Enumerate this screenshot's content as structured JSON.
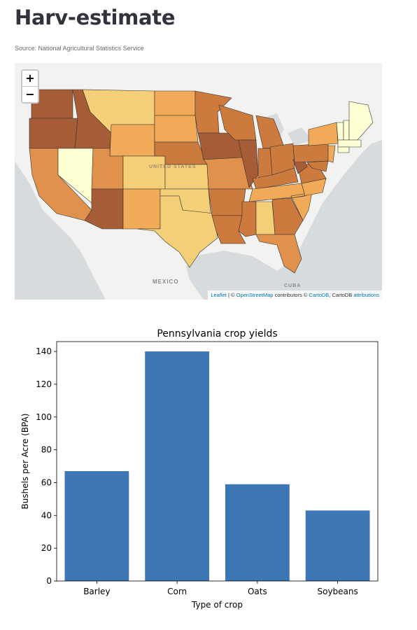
{
  "app": {
    "title": "Harv-estimate",
    "source": "Source: National Agricultural Statistics Service"
  },
  "map": {
    "zoom_in": "+",
    "zoom_out": "−",
    "labels": {
      "country": "UNITED STATES",
      "mexico": "MEXICO",
      "cuba": "CUBA"
    },
    "attribution": {
      "leaflet": "Leaflet",
      "sep1": " | © ",
      "osm": "OpenStreetMap",
      "mid": " contributors © ",
      "cartodb": "CartoDB",
      "mid2": ", CartoDB ",
      "attributions": "attributions"
    },
    "colors": {
      "water": "#d6dbdd",
      "land": "#f2f2f0",
      "dark": "#a65c36",
      "mid_dark": "#cd7a3e",
      "mid": "#e0914b",
      "light_mid": "#f0aa58",
      "light": "#f5cf78",
      "very_light": "#ffffd4"
    }
  },
  "chart_data": {
    "type": "bar",
    "title": "Pennsylvania crop yields",
    "xlabel": "Type of crop",
    "ylabel": "Bushels per Acre (BPA)",
    "categories": [
      "Barley",
      "Corn",
      "Oats",
      "Soybeans"
    ],
    "values": [
      67,
      140,
      59,
      43
    ],
    "ylim": [
      0,
      146
    ],
    "yticks": [
      0,
      20,
      40,
      60,
      80,
      100,
      120,
      140
    ],
    "color": "#3d76b5",
    "grid": false
  }
}
